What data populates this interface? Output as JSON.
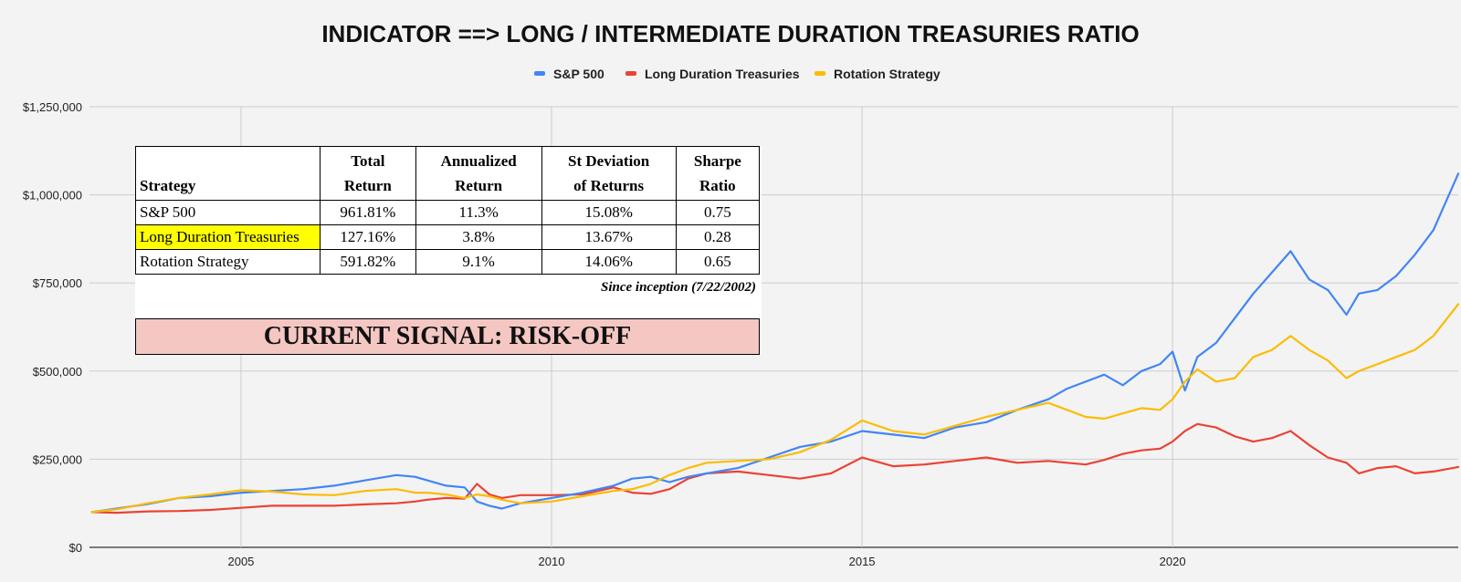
{
  "chart_data": {
    "type": "line",
    "title": "INDICATOR ==> LONG / INTERMEDIATE DURATION TREASURIES RATIO",
    "xlabel": "",
    "ylabel": "",
    "xlim": [
      2002.56,
      2024.6
    ],
    "ylim": [
      0,
      1250000
    ],
    "x_ticks": [
      2005,
      2010,
      2015,
      2020
    ],
    "x_tick_labels": [
      "2005",
      "2010",
      "2015",
      "2020"
    ],
    "y_ticks": [
      0,
      250000,
      500000,
      750000,
      1000000,
      1250000
    ],
    "y_tick_labels": [
      "$0",
      "$250,000",
      "$500,000",
      "$750,000",
      "$1,000,000",
      "$1,250,000"
    ],
    "grid": true,
    "legend_position": "top-center",
    "x": [
      2002.6,
      2003.0,
      2003.5,
      2004.0,
      2004.5,
      2005.0,
      2005.5,
      2006.0,
      2006.5,
      2007.0,
      2007.5,
      2007.8,
      2008.0,
      2008.3,
      2008.6,
      2008.8,
      2009.0,
      2009.2,
      2009.5,
      2010.0,
      2010.5,
      2011.0,
      2011.3,
      2011.6,
      2011.9,
      2012.2,
      2012.5,
      2013.0,
      2013.5,
      2014.0,
      2014.5,
      2015.0,
      2015.5,
      2016.0,
      2016.5,
      2017.0,
      2017.5,
      2018.0,
      2018.3,
      2018.6,
      2018.9,
      2019.2,
      2019.5,
      2019.8,
      2020.0,
      2020.2,
      2020.4,
      2020.7,
      2021.0,
      2021.3,
      2021.6,
      2021.9,
      2022.2,
      2022.5,
      2022.8,
      2023.0,
      2023.3,
      2023.6,
      2023.9,
      2024.2,
      2024.6
    ],
    "series": [
      {
        "name": "S&P 500",
        "color": "#4285f4",
        "values": [
          100000,
          110000,
          123000,
          140000,
          145000,
          155000,
          160000,
          165000,
          175000,
          190000,
          205000,
          200000,
          190000,
          175000,
          170000,
          130000,
          118000,
          110000,
          125000,
          140000,
          155000,
          175000,
          195000,
          200000,
          185000,
          200000,
          210000,
          225000,
          255000,
          285000,
          300000,
          330000,
          320000,
          310000,
          340000,
          355000,
          390000,
          420000,
          450000,
          470000,
          490000,
          460000,
          500000,
          520000,
          555000,
          445000,
          540000,
          580000,
          650000,
          720000,
          780000,
          840000,
          760000,
          730000,
          660000,
          720000,
          730000,
          770000,
          830000,
          900000,
          1060000
        ]
      },
      {
        "name": "Long Duration Treasuries",
        "color": "#ea4335",
        "values": [
          100000,
          98000,
          102000,
          103000,
          106000,
          112000,
          118000,
          118000,
          118000,
          122000,
          125000,
          130000,
          135000,
          140000,
          138000,
          180000,
          150000,
          140000,
          148000,
          148000,
          150000,
          170000,
          155000,
          152000,
          165000,
          195000,
          210000,
          215000,
          205000,
          195000,
          210000,
          255000,
          230000,
          235000,
          245000,
          255000,
          240000,
          245000,
          240000,
          235000,
          248000,
          265000,
          275000,
          280000,
          300000,
          330000,
          350000,
          340000,
          315000,
          300000,
          310000,
          330000,
          290000,
          255000,
          240000,
          210000,
          225000,
          230000,
          210000,
          215000,
          228000
        ]
      },
      {
        "name": "Rotation Strategy",
        "color": "#fbbc04",
        "values": [
          100000,
          108000,
          125000,
          140000,
          150000,
          162000,
          158000,
          150000,
          148000,
          160000,
          165000,
          155000,
          155000,
          150000,
          140000,
          150000,
          145000,
          135000,
          125000,
          130000,
          145000,
          160000,
          165000,
          180000,
          205000,
          225000,
          240000,
          245000,
          250000,
          270000,
          305000,
          360000,
          330000,
          320000,
          345000,
          370000,
          390000,
          410000,
          390000,
          370000,
          365000,
          380000,
          395000,
          390000,
          420000,
          470000,
          505000,
          470000,
          480000,
          540000,
          560000,
          600000,
          560000,
          530000,
          480000,
          500000,
          520000,
          540000,
          560000,
          600000,
          690000
        ]
      }
    ]
  },
  "table": {
    "headers": {
      "strategy": "Strategy",
      "total_return_1": "Total",
      "total_return_2": "Return",
      "annualized_1": "Annualized",
      "annualized_2": "Return",
      "stdev_1": "St Deviation",
      "stdev_2": "of Returns",
      "sharpe_1": "Sharpe",
      "sharpe_2": "Ratio"
    },
    "rows": [
      {
        "strategy": "S&P 500",
        "total_return": "961.81%",
        "annualized_return": "11.3%",
        "st_deviation": "15.08%",
        "sharpe_ratio": "0.75"
      },
      {
        "strategy": "Long Duration Treasuries",
        "total_return": "127.16%",
        "annualized_return": "3.8%",
        "st_deviation": "13.67%",
        "sharpe_ratio": "0.28"
      },
      {
        "strategy": "Rotation Strategy",
        "total_return": "591.82%",
        "annualized_return": "9.1%",
        "st_deviation": "14.06%",
        "sharpe_ratio": "0.65"
      }
    ],
    "since_inception": "Since inception (7/22/2002)",
    "highlight_color": "#ffff00"
  },
  "signal": {
    "text": "CURRENT SIGNAL: RISK-OFF",
    "background": "#f4c7c3"
  }
}
